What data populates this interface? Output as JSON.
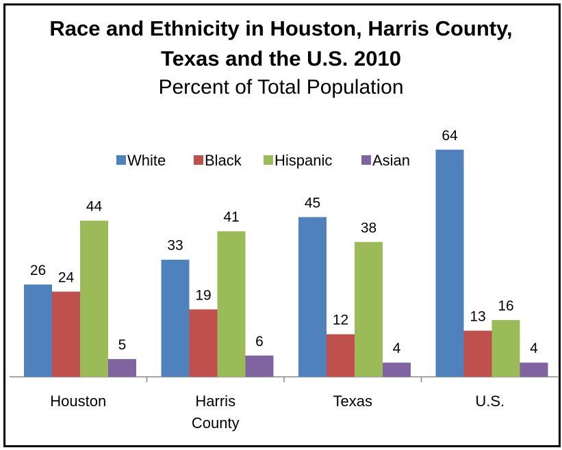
{
  "chart_data": {
    "type": "bar",
    "title": "Race and Ethnicity in Houston, Harris County, Texas and the U.S. 2010",
    "subtitle": "Percent of Total Population",
    "categories": [
      "Houston",
      "Harris County",
      "Texas",
      "U.S."
    ],
    "series": [
      {
        "name": "White",
        "color": "#4f81bd",
        "values": [
          26,
          33,
          45,
          64
        ]
      },
      {
        "name": "Black",
        "color": "#c0504d",
        "values": [
          24,
          19,
          12,
          13
        ]
      },
      {
        "name": "Hispanic",
        "color": "#9bbb59",
        "values": [
          44,
          41,
          38,
          16
        ]
      },
      {
        "name": "Asian",
        "color": "#8064a2",
        "values": [
          5,
          6,
          4,
          4
        ]
      }
    ],
    "legend": "top"
  }
}
